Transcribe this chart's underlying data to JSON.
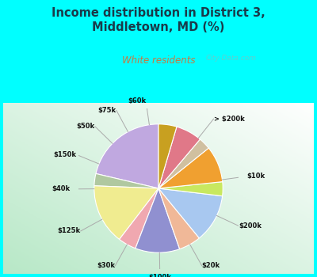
{
  "title": "Income distribution in District 3,\nMiddletown, MD (%)",
  "subtitle": "White residents",
  "title_color": "#1a3a4a",
  "subtitle_color": "#c87941",
  "background_color": "#00ffff",
  "watermark": "City-Data.com",
  "labels": [
    "> $200k",
    "$10k",
    "$200k",
    "$20k",
    "$100k",
    "$30k",
    "$125k",
    "$40k",
    "$150k",
    "$50k",
    "$75k",
    "$60k"
  ],
  "values": [
    21.0,
    3.0,
    15.0,
    4.5,
    11.0,
    5.5,
    12.0,
    3.5,
    9.0,
    3.0,
    6.5,
    4.5
  ],
  "colors": [
    "#c0a8e0",
    "#b0c8a0",
    "#f0ec90",
    "#f0a8b0",
    "#9090d0",
    "#f0b898",
    "#a8c8f0",
    "#c8e860",
    "#f0a030",
    "#d0c0a0",
    "#e07888",
    "#c8a020"
  ],
  "startangle": 90
}
